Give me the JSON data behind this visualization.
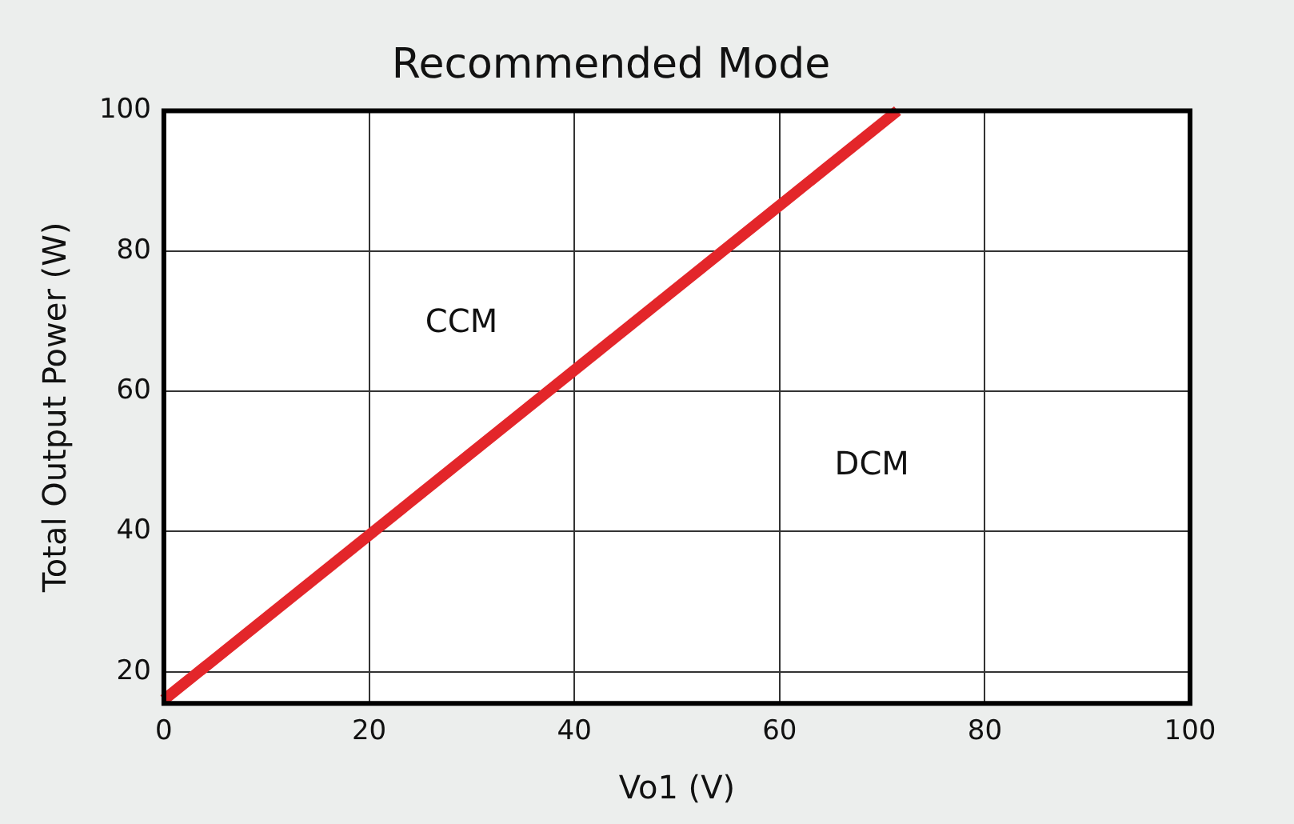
{
  "chart_data": {
    "type": "line",
    "title": "Recommended Mode",
    "xlabel": "Vo1 (V)",
    "ylabel": "Total Output Power (W)",
    "x": [
      0,
      71.5
    ],
    "series": [
      {
        "color": "#e3262a",
        "values": [
          16,
          100
        ]
      }
    ],
    "xlim": [
      0,
      100
    ],
    "xticks": [
      0,
      20,
      40,
      60,
      80,
      100
    ],
    "ylim": [
      15.5,
      100
    ],
    "yticks": [
      20,
      40,
      60,
      80,
      100
    ],
    "grid": true,
    "legend": false,
    "marker": "none",
    "line_style": "solid",
    "annotations": [
      "CCM",
      "DCM"
    ]
  }
}
